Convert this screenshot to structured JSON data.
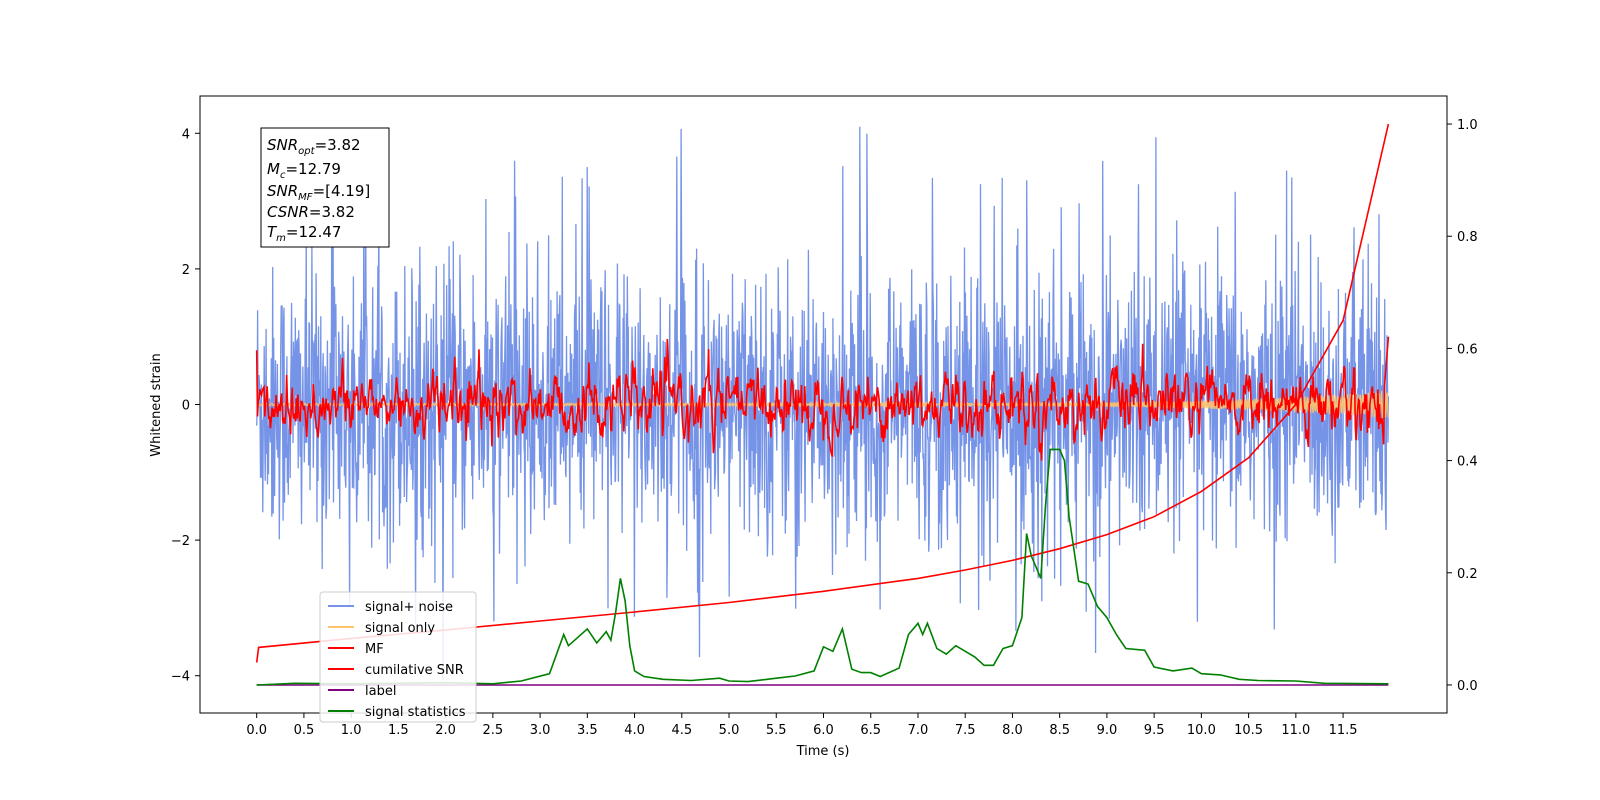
{
  "chart_data": {
    "type": "line",
    "title": "",
    "xlabel": "Time (s)",
    "ylabel": "Whitened strain",
    "y2label": "",
    "xlim": [
      -0.6,
      12.6
    ],
    "ylim": [
      -4.55,
      4.55
    ],
    "y2lim": [
      -0.05,
      1.05
    ],
    "x_ticks": [
      "0.0",
      "0.5",
      "1.0",
      "1.5",
      "2.0",
      "2.5",
      "3.0",
      "3.5",
      "4.0",
      "4.5",
      "5.0",
      "5.5",
      "6.0",
      "6.5",
      "7.0",
      "7.5",
      "8.0",
      "8.5",
      "9.0",
      "9.5",
      "10.0",
      "10.5",
      "11.0",
      "11.5"
    ],
    "y_ticks": [
      "4",
      "2",
      "0",
      "−2",
      "−4"
    ],
    "y_tick_values": [
      4,
      2,
      0,
      -2,
      -4
    ],
    "y2_ticks": [
      "1.0",
      "0.8",
      "0.6",
      "0.4",
      "0.2",
      "0.0"
    ],
    "y2_tick_values": [
      1.0,
      0.8,
      0.6,
      0.4,
      0.2,
      0.0
    ],
    "grid": false,
    "legend_placement": "lower-left",
    "stats_box": {
      "snr_opt": "=3.82",
      "mc": "=12.79",
      "snr_mf": "=[4.19]",
      "csnr": "=3.82",
      "tm": "=12.47"
    },
    "series": [
      {
        "name": "signal+ noise",
        "color": "#6f8ee6",
        "axis": "left",
        "style": "noise",
        "x_range": [
          0,
          11.98
        ],
        "std": 1.0,
        "peak_max": 4.1,
        "peak_min": -4.1
      },
      {
        "name": "signal only",
        "color": "#ffc36b",
        "axis": "left",
        "style": "chirp",
        "x_range": [
          0,
          11.98
        ],
        "amplitude_end": 0.2
      },
      {
        "name": "MF",
        "color": "#ff0000",
        "axis": "left",
        "style": "noise",
        "x_range": [
          0,
          11.98
        ],
        "std": 0.2,
        "start_value": 0.8,
        "end_value": 1.0
      },
      {
        "name": "cumilative SNR",
        "color": "#ff0000",
        "axis": "right",
        "x": [
          0,
          0.02,
          1,
          2,
          3,
          4,
          5,
          6,
          7,
          7.5,
          8,
          8.5,
          9,
          9.5,
          10,
          10.5,
          11,
          11.5,
          11.98
        ],
        "y": [
          0.04,
          0.067,
          0.083,
          0.098,
          0.114,
          0.13,
          0.147,
          0.167,
          0.19,
          0.205,
          0.222,
          0.243,
          0.268,
          0.3,
          0.345,
          0.405,
          0.5,
          0.65,
          1.0
        ]
      },
      {
        "name": "label",
        "color": "#800080",
        "axis": "right",
        "x": [
          0,
          11.98
        ],
        "y": [
          0,
          0
        ]
      },
      {
        "name": "signal statistics",
        "color": "#008000",
        "axis": "right",
        "x": [
          0,
          0.4,
          1.0,
          2.0,
          2.5,
          2.8,
          3.1,
          3.25,
          3.3,
          3.4,
          3.5,
          3.6,
          3.7,
          3.75,
          3.8,
          3.85,
          3.9,
          3.95,
          4.0,
          4.1,
          4.3,
          4.6,
          4.9,
          5.0,
          5.2,
          5.5,
          5.7,
          5.9,
          6.0,
          6.1,
          6.2,
          6.3,
          6.4,
          6.5,
          6.6,
          6.8,
          6.9,
          7.0,
          7.05,
          7.1,
          7.2,
          7.3,
          7.4,
          7.6,
          7.7,
          7.8,
          7.9,
          8.0,
          8.1,
          8.15,
          8.2,
          8.25,
          8.3,
          8.35,
          8.4,
          8.5,
          8.55,
          8.6,
          8.7,
          8.8,
          8.9,
          9.0,
          9.1,
          9.2,
          9.4,
          9.5,
          9.7,
          9.9,
          10.0,
          10.2,
          10.4,
          10.6,
          11.0,
          11.3,
          11.98
        ],
        "y": [
          0.0,
          0.003,
          0.002,
          0.004,
          0.002,
          0.007,
          0.02,
          0.09,
          0.07,
          0.085,
          0.1,
          0.075,
          0.095,
          0.08,
          0.13,
          0.19,
          0.15,
          0.07,
          0.025,
          0.015,
          0.01,
          0.008,
          0.012,
          0.007,
          0.006,
          0.012,
          0.016,
          0.025,
          0.068,
          0.06,
          0.1,
          0.028,
          0.022,
          0.022,
          0.015,
          0.03,
          0.09,
          0.11,
          0.09,
          0.11,
          0.065,
          0.055,
          0.07,
          0.05,
          0.035,
          0.035,
          0.065,
          0.07,
          0.12,
          0.27,
          0.23,
          0.21,
          0.19,
          0.32,
          0.42,
          0.42,
          0.4,
          0.3,
          0.185,
          0.18,
          0.14,
          0.12,
          0.09,
          0.065,
          0.062,
          0.032,
          0.025,
          0.03,
          0.02,
          0.018,
          0.01,
          0.008,
          0.007,
          0.003,
          0.002
        ]
      }
    ]
  }
}
